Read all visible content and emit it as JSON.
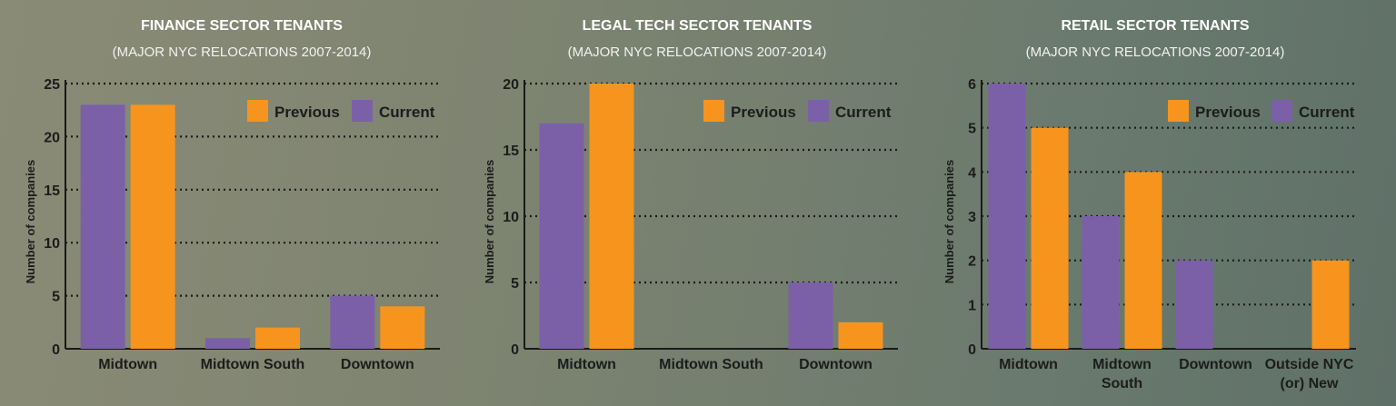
{
  "colors": {
    "previous": "#f7941d",
    "current": "#7b60a8",
    "grid": "#1a1a1a",
    "text": "#1c1c1c"
  },
  "chart_data": [
    {
      "type": "bar",
      "title": "FINANCE SECTOR TENANTS",
      "subtitle": "(MAJOR NYC RELOCATIONS 2007-2014)",
      "ylabel": "Number of companies",
      "xlabel": "",
      "ylim": [
        0,
        25
      ],
      "yticks": [
        0,
        5,
        10,
        15,
        20,
        25
      ],
      "categories": [
        [
          "Midtown"
        ],
        [
          "Midtown South"
        ],
        [
          "Downtown"
        ]
      ],
      "series": [
        {
          "name": "Current",
          "values": [
            23,
            1,
            5
          ]
        },
        {
          "name": "Previous",
          "values": [
            23,
            2,
            4
          ]
        }
      ],
      "legend": {
        "position": "top-right",
        "order": [
          "Previous",
          "Current"
        ]
      },
      "grid": true
    },
    {
      "type": "bar",
      "title": "LEGAL TECH SECTOR TENANTS",
      "subtitle": "(MAJOR NYC RELOCATIONS 2007-2014)",
      "ylabel": "Number of companies",
      "xlabel": "",
      "ylim": [
        0,
        20
      ],
      "yticks": [
        0,
        5,
        10,
        15,
        20
      ],
      "categories": [
        [
          "Midtown"
        ],
        [
          "Midtown South"
        ],
        [
          "Downtown"
        ]
      ],
      "series": [
        {
          "name": "Current",
          "values": [
            17,
            0,
            5
          ]
        },
        {
          "name": "Previous",
          "values": [
            20,
            0,
            2
          ]
        }
      ],
      "legend": {
        "position": "top-right",
        "order": [
          "Previous",
          "Current"
        ]
      },
      "grid": true
    },
    {
      "type": "bar",
      "title": "RETAIL SECTOR TENANTS",
      "subtitle": "(MAJOR NYC RELOCATIONS 2007-2014)",
      "ylabel": "Number of companies",
      "xlabel": "",
      "ylim": [
        0,
        6
      ],
      "yticks": [
        0,
        1,
        2,
        3,
        4,
        5,
        6
      ],
      "categories": [
        [
          "Midtown"
        ],
        [
          "Midtown",
          "South"
        ],
        [
          "Downtown"
        ],
        [
          "Outside NYC",
          "(or) New"
        ]
      ],
      "series": [
        {
          "name": "Current",
          "values": [
            6,
            3,
            2,
            0
          ]
        },
        {
          "name": "Previous",
          "values": [
            5,
            4,
            0,
            2
          ]
        }
      ],
      "legend": {
        "position": "top-right",
        "order": [
          "Previous",
          "Current"
        ]
      },
      "grid": true
    }
  ]
}
